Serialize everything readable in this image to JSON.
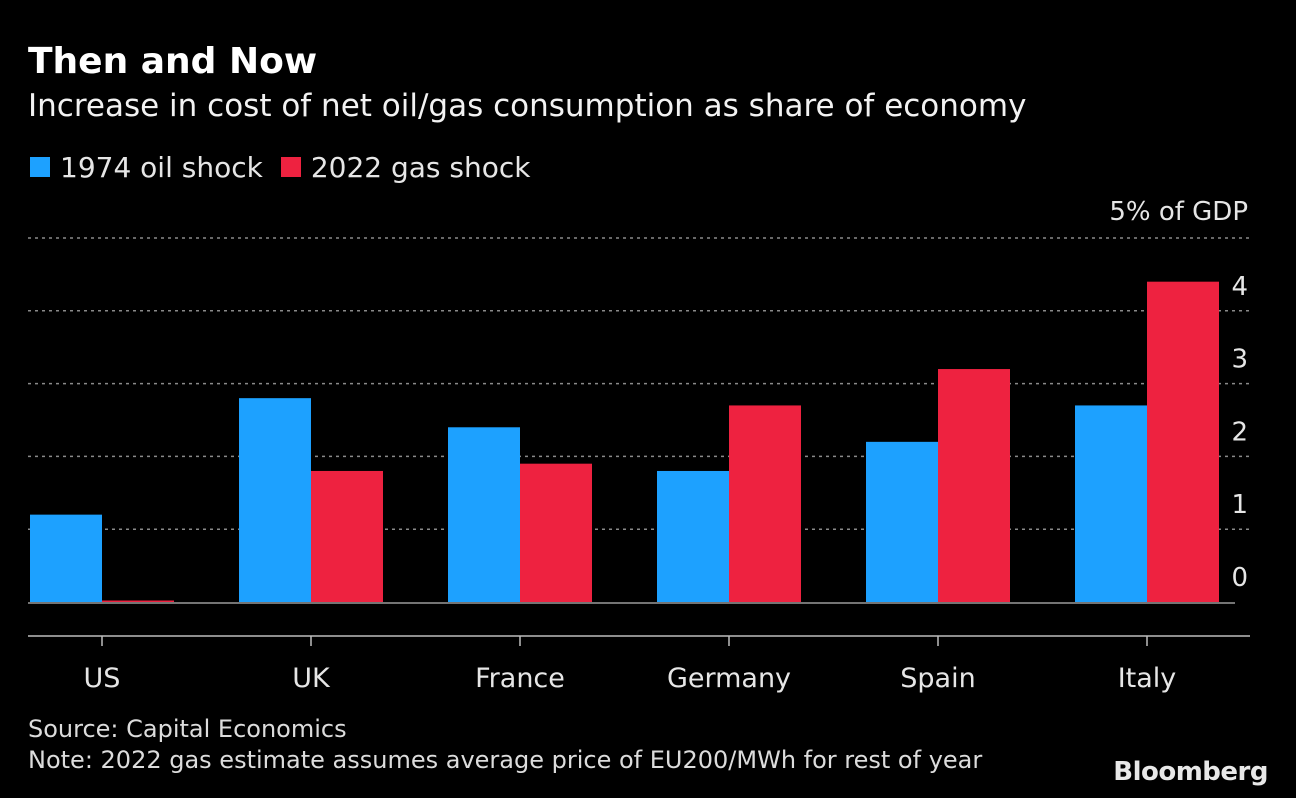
{
  "title": "Then and Now",
  "subtitle": "Increase in cost of net oil/gas consumption as share of economy",
  "legend": {
    "items": [
      {
        "label": "1974 oil shock",
        "color": "#1da1ff"
      },
      {
        "label": "2022 gas shock",
        "color": "#ee2240"
      }
    ]
  },
  "footer": {
    "source": "Source: Capital Economics",
    "note": "Note: 2022 gas estimate assumes average price of EU200/MWh for rest of year",
    "brand": "Bloomberg"
  },
  "chart_data": {
    "type": "bar",
    "title": "Then and Now",
    "subtitle": "Increase in cost of net oil/gas consumption as share of economy",
    "unit_label": "5% of GDP",
    "categories": [
      "US",
      "UK",
      "France",
      "Germany",
      "Spain",
      "Italy"
    ],
    "series": [
      {
        "name": "1974 oil shock",
        "color": "#1da1ff",
        "values": [
          1.2,
          2.8,
          2.4,
          1.8,
          2.2,
          2.7
        ]
      },
      {
        "name": "2022 gas shock",
        "color": "#ee2240",
        "values": [
          0.02,
          1.8,
          1.9,
          2.7,
          3.2,
          4.4
        ]
      }
    ],
    "ylim": [
      0,
      5
    ],
    "yticks": [
      0,
      1,
      2,
      3,
      4,
      5
    ],
    "ytick_labels": [
      "0",
      "1",
      "2",
      "3",
      "4",
      "5% of GDP"
    ],
    "grid": true,
    "legend_position": "top-left",
    "axis_side": "right"
  }
}
